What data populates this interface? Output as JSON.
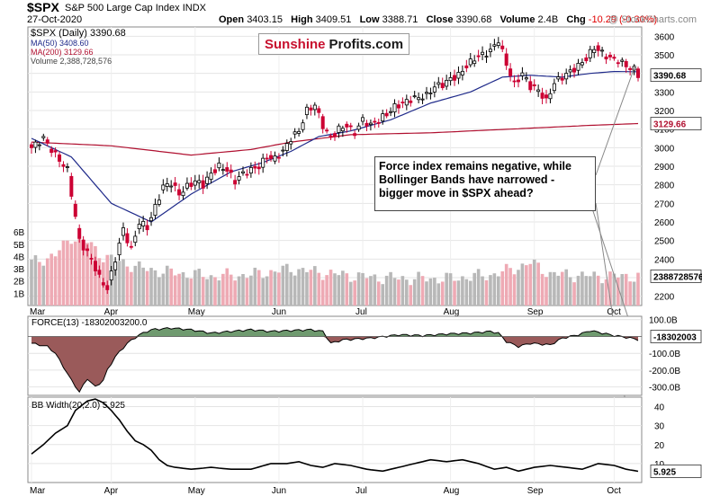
{
  "header": {
    "symbol": "$SPX",
    "name": "S&P 500 Large Cap Index",
    "exchange": "INDX",
    "date": "27-Oct-2020",
    "open_label": "Open",
    "open": "3403.15",
    "high_label": "High",
    "high": "3409.51",
    "low_label": "Low",
    "low": "3388.71",
    "close_label": "Close",
    "close": "3390.68",
    "volume_label": "Volume",
    "volume": "2.4B",
    "chg_label": "Chg",
    "chg": "-10.29 (-0.30%)",
    "chg_color": "#e00000",
    "watermark": "@ StockCharts.com"
  },
  "logo": {
    "part1": "Sunshine",
    "part2": "Profits.com",
    "color1": "#c8102e",
    "color2": "#1a1a1a"
  },
  "legend": {
    "price": "$SPX (Daily) 3390.68",
    "ma50": "MA(50) 3408.60",
    "ma200": "MA(200) 3129.66",
    "volume": "Volume 2,388,728,576"
  },
  "annotation": "Force index remains negative, while Bollinger Bands have narrowed - bigger move in $SPX ahead?",
  "price_badges": {
    "last": "3390.68",
    "ma200": "3129.66",
    "volume": "2388728576"
  },
  "force_label": "FORCE(13) -18302003200.0",
  "force_badge": "-18302003",
  "bb_label": "BB Width(20,2.0) 5.925",
  "bb_badge": "5.925",
  "months": [
    "Mar",
    "Apr",
    "May",
    "Jun",
    "Jul",
    "Aug",
    "Sep",
    "Oct"
  ],
  "colors": {
    "up": "#000000",
    "down": "#cc0033",
    "ma50": "#1f2a8a",
    "ma200": "#b01030",
    "vol_up": "#b8b8b8",
    "vol_down": "#eeaab4",
    "force_pos": "#6f9a6f",
    "force_neg": "#9a5a5a"
  },
  "chart_data": [
    {
      "type": "candlestick",
      "title": "$SPX S&P 500 Large Cap Index",
      "ylim": [
        2150,
        3650
      ],
      "y_ticks": [
        2200,
        2300,
        2400,
        2500,
        2600,
        2700,
        2800,
        2900,
        3000,
        3100,
        3200,
        3300,
        3400,
        3500,
        3600
      ],
      "volume_ticks": [
        "1B",
        "2B",
        "3B",
        "4B",
        "5B",
        "6B"
      ],
      "x_months": [
        "Mar",
        "Apr",
        "May",
        "Jun",
        "Jul",
        "Aug",
        "Sep",
        "Oct"
      ],
      "close_path": [
        [
          0,
          3000
        ],
        [
          3,
          3050
        ],
        [
          6,
          2960
        ],
        [
          9,
          2880
        ],
        [
          12,
          2500
        ],
        [
          15,
          2400
        ],
        [
          17,
          2300
        ],
        [
          19,
          2240
        ],
        [
          21,
          2400
        ],
        [
          23,
          2560
        ],
        [
          25,
          2450
        ],
        [
          27,
          2600
        ],
        [
          29,
          2570
        ],
        [
          31,
          2680
        ],
        [
          33,
          2790
        ],
        [
          35,
          2810
        ],
        [
          37,
          2750
        ],
        [
          39,
          2790
        ],
        [
          41,
          2820
        ],
        [
          43,
          2800
        ],
        [
          45,
          2860
        ],
        [
          47,
          2900
        ],
        [
          49,
          2880
        ],
        [
          51,
          2820
        ],
        [
          53,
          2860
        ],
        [
          55,
          2880
        ],
        [
          57,
          2900
        ],
        [
          59,
          2950
        ],
        [
          61,
          2940
        ],
        [
          63,
          2980
        ],
        [
          65,
          3050
        ],
        [
          67,
          3090
        ],
        [
          69,
          3200
        ],
        [
          71,
          3230
        ],
        [
          73,
          3120
        ],
        [
          75,
          3050
        ],
        [
          77,
          3100
        ],
        [
          79,
          3120
        ],
        [
          81,
          3080
        ],
        [
          83,
          3150
        ],
        [
          85,
          3120
        ],
        [
          87,
          3150
        ],
        [
          89,
          3180
        ],
        [
          91,
          3220
        ],
        [
          93,
          3240
        ],
        [
          95,
          3260
        ],
        [
          97,
          3270
        ],
        [
          99,
          3280
        ],
        [
          101,
          3330
        ],
        [
          103,
          3340
        ],
        [
          105,
          3370
        ],
        [
          107,
          3390
        ],
        [
          109,
          3440
        ],
        [
          111,
          3480
        ],
        [
          113,
          3500
        ],
        [
          115,
          3520
        ],
        [
          117,
          3580
        ],
        [
          119,
          3450
        ],
        [
          121,
          3340
        ],
        [
          123,
          3400
        ],
        [
          125,
          3330
        ],
        [
          127,
          3310
        ],
        [
          129,
          3250
        ],
        [
          131,
          3350
        ],
        [
          133,
          3380
        ],
        [
          135,
          3410
        ],
        [
          137,
          3440
        ],
        [
          139,
          3480
        ],
        [
          141,
          3540
        ],
        [
          143,
          3510
        ],
        [
          145,
          3480
        ],
        [
          147,
          3470
        ],
        [
          149,
          3440
        ],
        [
          151,
          3420
        ],
        [
          152,
          3391
        ]
      ],
      "ma50": [
        [
          0,
          3050
        ],
        [
          10,
          2950
        ],
        [
          20,
          2700
        ],
        [
          30,
          2600
        ],
        [
          40,
          2750
        ],
        [
          50,
          2870
        ],
        [
          58,
          2920
        ],
        [
          65,
          2980
        ],
        [
          72,
          3060
        ],
        [
          80,
          3090
        ],
        [
          90,
          3150
        ],
        [
          100,
          3240
        ],
        [
          110,
          3300
        ],
        [
          118,
          3380
        ],
        [
          125,
          3390
        ],
        [
          133,
          3380
        ],
        [
          140,
          3400
        ],
        [
          146,
          3410
        ],
        [
          152,
          3408.6
        ]
      ],
      "ma200": [
        [
          0,
          3030
        ],
        [
          20,
          3010
        ],
        [
          40,
          2960
        ],
        [
          55,
          2990
        ],
        [
          65,
          3030
        ],
        [
          80,
          3070
        ],
        [
          100,
          3080
        ],
        [
          120,
          3100
        ],
        [
          140,
          3120
        ],
        [
          152,
          3129.66
        ]
      ],
      "volume_billion": [
        [
          0,
          3.5
        ],
        [
          6,
          4.1
        ],
        [
          10,
          5.6
        ],
        [
          14,
          5.2
        ],
        [
          18,
          4.0
        ],
        [
          22,
          3.6
        ],
        [
          28,
          3.0
        ],
        [
          35,
          2.7
        ],
        [
          45,
          2.4
        ],
        [
          55,
          2.5
        ],
        [
          65,
          3.0
        ],
        [
          75,
          2.6
        ],
        [
          85,
          2.3
        ],
        [
          95,
          2.2
        ],
        [
          105,
          2.2
        ],
        [
          115,
          2.5
        ],
        [
          120,
          2.9
        ],
        [
          125,
          3.5
        ],
        [
          130,
          2.6
        ],
        [
          140,
          2.4
        ],
        [
          152,
          2.39
        ]
      ],
      "last": 3390.68
    },
    {
      "type": "area",
      "title": "FORCE(13)",
      "ylim": [
        -350,
        120
      ],
      "y_ticks": [
        "100.0B",
        "-100.0B",
        "-200.0B",
        "-300.0B"
      ],
      "unit": "billion",
      "values": [
        [
          0,
          -40
        ],
        [
          4,
          -60
        ],
        [
          6,
          -100
        ],
        [
          8,
          -180
        ],
        [
          10,
          -260
        ],
        [
          12,
          -330
        ],
        [
          14,
          -250
        ],
        [
          16,
          -300
        ],
        [
          18,
          -260
        ],
        [
          19,
          -200
        ],
        [
          21,
          -120
        ],
        [
          24,
          -40
        ],
        [
          27,
          10
        ],
        [
          30,
          40
        ],
        [
          35,
          50
        ],
        [
          40,
          40
        ],
        [
          45,
          20
        ],
        [
          50,
          30
        ],
        [
          55,
          40
        ],
        [
          60,
          30
        ],
        [
          65,
          35
        ],
        [
          70,
          40
        ],
        [
          73,
          30
        ],
        [
          75,
          -40
        ],
        [
          78,
          -20
        ],
        [
          85,
          -10
        ],
        [
          92,
          10
        ],
        [
          98,
          5
        ],
        [
          104,
          15
        ],
        [
          110,
          20
        ],
        [
          115,
          30
        ],
        [
          117,
          20
        ],
        [
          119,
          -30
        ],
        [
          122,
          -60
        ],
        [
          125,
          -40
        ],
        [
          130,
          -50
        ],
        [
          133,
          -10
        ],
        [
          137,
          10
        ],
        [
          140,
          35
        ],
        [
          143,
          20
        ],
        [
          146,
          5
        ],
        [
          149,
          -5
        ],
        [
          152,
          -18.3
        ]
      ],
      "last": -18.302
    },
    {
      "type": "line",
      "title": "BB Width(20,2.0)",
      "ylim": [
        0,
        45
      ],
      "y_ticks": [
        10,
        20,
        30,
        40
      ],
      "values": [
        [
          0,
          15
        ],
        [
          3,
          20
        ],
        [
          6,
          26
        ],
        [
          9,
          30
        ],
        [
          11,
          38
        ],
        [
          14,
          43
        ],
        [
          16,
          44
        ],
        [
          18,
          42
        ],
        [
          20,
          38
        ],
        [
          22,
          33
        ],
        [
          24,
          27
        ],
        [
          26,
          22
        ],
        [
          28,
          20
        ],
        [
          30,
          17
        ],
        [
          32,
          12
        ],
        [
          34,
          9
        ],
        [
          36,
          8
        ],
        [
          40,
          7
        ],
        [
          45,
          8
        ],
        [
          50,
          7
        ],
        [
          55,
          7
        ],
        [
          60,
          10
        ],
        [
          64,
          10
        ],
        [
          67,
          11
        ],
        [
          70,
          9
        ],
        [
          73,
          8
        ],
        [
          76,
          10
        ],
        [
          80,
          9
        ],
        [
          84,
          7
        ],
        [
          88,
          6
        ],
        [
          92,
          8
        ],
        [
          96,
          10
        ],
        [
          100,
          12
        ],
        [
          104,
          11
        ],
        [
          108,
          12
        ],
        [
          112,
          10
        ],
        [
          116,
          7
        ],
        [
          119,
          8
        ],
        [
          122,
          6
        ],
        [
          126,
          8
        ],
        [
          130,
          9
        ],
        [
          134,
          8
        ],
        [
          138,
          7
        ],
        [
          142,
          10
        ],
        [
          146,
          9
        ],
        [
          149,
          7
        ],
        [
          152,
          5.925
        ]
      ],
      "last": 5.925
    }
  ]
}
